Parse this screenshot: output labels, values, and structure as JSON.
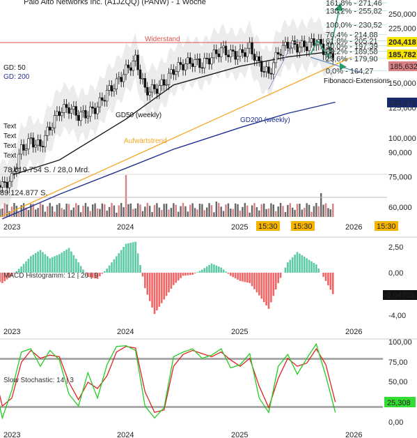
{
  "header": {
    "title": "Palo Alto Networks Inc. (A1JZQQ) (PANW) - 1 Woche"
  },
  "colors": {
    "up": "#1b1b1b",
    "down": "#1b1b1b",
    "gd50": "#1a1a1a",
    "gd200": "#1f2f8f",
    "trend": "#f5a623",
    "resistance": "#d9534f",
    "fib": "#2a8c8c",
    "macd_pos": "#5ccaa5",
    "macd_neg": "#f06565",
    "stoch_k": "#22cc22",
    "stoch_d": "#dd2222",
    "band": "#aaaaaa",
    "badge_yellow": "#f7e300",
    "badge_navy": "#1a2a6e",
    "badge_pink": "#d98085",
    "badge_black": "#111111",
    "badge_green": "#33dd33",
    "time_orange": "#f5b400"
  },
  "price_panel": {
    "legend": {
      "gd50": "GD: 50",
      "gd200": "GD: 200"
    },
    "text_lines": [
      "Text",
      "Text",
      "Text",
      "Text"
    ],
    "volume_label_1": "78.619.754 S. / 28,0 Mrd.",
    "volume_label_2": "89.124.877 S.",
    "annotations": {
      "resistance": "Widerstand",
      "gd50_weekly": "GD50 (weekly)",
      "gd200_weekly": "GD200 (weekly)",
      "uptrend": "Aufwärtstrend",
      "fib_ext": "Fibonacci-Extensions"
    },
    "fib_levels": [
      "161,8% - 271,46",
      "138,2% - 255,82",
      "100,0% - 230,52",
      "76,4% - 214,88",
      "61,8% - 205,21",
      "50,0% - 197,39",
      "38,2% - 189,58",
      "23,6% - 179,90",
      "0,0% - 164,27"
    ],
    "y_ticks": [
      "250,000",
      "225,000",
      "200,000",
      "150,000",
      "125,000",
      "100,000",
      "90,000",
      "75,000",
      "60,000"
    ],
    "badges": {
      "b1": "204,418",
      "b2": "185,782",
      "b3": "185,632",
      "b4": "130,272"
    },
    "time_badges": [
      "15:30",
      "15:30",
      "15:30"
    ]
  },
  "x_ticks": [
    "2023",
    "2024",
    "2025",
    "2026"
  ],
  "macd_panel": {
    "label": "MACD Histogramm: 12 | 26 | 9",
    "y_ticks": [
      "2,50",
      "0,00",
      "-2,50",
      "-4,00"
    ],
    "badge": "-2,04703"
  },
  "stoch_panel": {
    "label": "Slow Stochastic: 14 | 3",
    "y_ticks": [
      "100,00",
      "75,00",
      "50,00",
      "25,00",
      "0,00"
    ],
    "badge": "25,308"
  },
  "chart_data": [
    {
      "type": "candlestick",
      "title": "Palo Alto Networks Inc. (A1JZQQ) (PANW) - 1 Woche",
      "y_scale": "log",
      "ylim": [
        55,
        290
      ],
      "x_range": [
        "2022-10",
        "2026-08"
      ],
      "close_series": [
        [
          "2022-10",
          82
        ],
        [
          "2022-11",
          75
        ],
        [
          "2022-12",
          70
        ],
        [
          "2023-01",
          74
        ],
        [
          "2023-02",
          92
        ],
        [
          "2023-03",
          98
        ],
        [
          "2023-04",
          94
        ],
        [
          "2023-05",
          108
        ],
        [
          "2023-06",
          122
        ],
        [
          "2023-07",
          125
        ],
        [
          "2023-08",
          118
        ],
        [
          "2023-09",
          120
        ],
        [
          "2023-10",
          126
        ],
        [
          "2023-11",
          140
        ],
        [
          "2023-12",
          150
        ],
        [
          "2024-01",
          165
        ],
        [
          "2024-02",
          178
        ],
        [
          "2024-03",
          142
        ],
        [
          "2024-04",
          143
        ],
        [
          "2024-05",
          150
        ],
        [
          "2024-06",
          165
        ],
        [
          "2024-07",
          172
        ],
        [
          "2024-08",
          176
        ],
        [
          "2024-09",
          172
        ],
        [
          "2024-10",
          182
        ],
        [
          "2024-11",
          192
        ],
        [
          "2024-12",
          186
        ],
        [
          "2025-01",
          185
        ],
        [
          "2025-02",
          195
        ],
        [
          "2025-03",
          172
        ],
        [
          "2025-04",
          160
        ],
        [
          "2025-05",
          188
        ],
        [
          "2025-06",
          200
        ],
        [
          "2025-07",
          196
        ],
        [
          "2025-08",
          198
        ],
        [
          "2025-09",
          205
        ],
        [
          "2025-10",
          188
        ],
        [
          "2025-11",
          185.6
        ]
      ],
      "series": [
        {
          "name": "GD50 (weekly)",
          "values": [
            [
              "2023-01",
              76
            ],
            [
              "2023-06",
              85
            ],
            [
              "2024-01",
              115
            ],
            [
              "2024-06",
              148
            ],
            [
              "2025-01",
              170
            ],
            [
              "2025-06",
              182
            ],
            [
              "2025-11",
              190
            ]
          ]
        },
        {
          "name": "GD200 (weekly)",
          "values": [
            [
              "2022-12",
              55
            ],
            [
              "2023-06",
              66
            ],
            [
              "2024-01",
              80
            ],
            [
              "2024-06",
              92
            ],
            [
              "2025-01",
              108
            ],
            [
              "2025-06",
              120
            ],
            [
              "2025-11",
              130.3
            ]
          ]
        }
      ],
      "resistance": 205,
      "fibonacci_extensions": [
        271.46,
        255.82,
        230.52,
        214.88,
        205.21,
        197.39,
        189.58,
        179.9,
        164.27
      ]
    },
    {
      "type": "bar",
      "title": "MACD Histogramm: 12 | 26 | 9",
      "ylim": [
        -4.6,
        3.2
      ],
      "values_by_month": [
        [
          "2022-11",
          -0.6
        ],
        [
          "2022-12",
          -1.0
        ],
        [
          "2023-01",
          -0.3
        ],
        [
          "2023-02",
          0.6
        ],
        [
          "2023-03",
          1.6
        ],
        [
          "2023-04",
          2.2
        ],
        [
          "2023-05",
          1.4
        ],
        [
          "2023-06",
          1.8
        ],
        [
          "2023-07",
          2.4
        ],
        [
          "2023-08",
          1.0
        ],
        [
          "2023-09",
          -0.4
        ],
        [
          "2023-10",
          -0.6
        ],
        [
          "2023-11",
          0.4
        ],
        [
          "2023-12",
          1.6
        ],
        [
          "2024-01",
          2.8
        ],
        [
          "2024-02",
          3.0
        ],
        [
          "2024-03",
          -1.5
        ],
        [
          "2024-04",
          -4.0
        ],
        [
          "2024-05",
          -2.6
        ],
        [
          "2024-06",
          -1.2
        ],
        [
          "2024-07",
          -0.3
        ],
        [
          "2024-08",
          -0.2
        ],
        [
          "2024-09",
          0.3
        ],
        [
          "2024-10",
          0.9
        ],
        [
          "2024-11",
          0.5
        ],
        [
          "2024-12",
          -0.3
        ],
        [
          "2025-01",
          -0.8
        ],
        [
          "2025-02",
          -1.0
        ],
        [
          "2025-03",
          -2.2
        ],
        [
          "2025-04",
          -3.5
        ],
        [
          "2025-05",
          -1.0
        ],
        [
          "2025-06",
          1.0
        ],
        [
          "2025-07",
          2.0
        ],
        [
          "2025-08",
          1.4
        ],
        [
          "2025-09",
          0.8
        ],
        [
          "2025-10",
          -0.8
        ],
        [
          "2025-11",
          -2.5
        ]
      ]
    },
    {
      "type": "line",
      "title": "Slow Stochastic: 14 | 3",
      "ylim": [
        0,
        100
      ],
      "bands": [
        80,
        20
      ],
      "series": [
        {
          "name": "%K",
          "values": [
            [
              "2022-11",
              60
            ],
            [
              "2022-12",
              5
            ],
            [
              "2023-01",
              40
            ],
            [
              "2023-02",
              88
            ],
            [
              "2023-03",
              92
            ],
            [
              "2023-04",
              70
            ],
            [
              "2023-05",
              90
            ],
            [
              "2023-06",
              78
            ],
            [
              "2023-07",
              35
            ],
            [
              "2023-08",
              20
            ],
            [
              "2023-09",
              62
            ],
            [
              "2023-10",
              30
            ],
            [
              "2023-11",
              72
            ],
            [
              "2023-12",
              95
            ],
            [
              "2024-01",
              96
            ],
            [
              "2024-02",
              90
            ],
            [
              "2024-03",
              20
            ],
            [
              "2024-04",
              5
            ],
            [
              "2024-05",
              18
            ],
            [
              "2024-06",
              82
            ],
            [
              "2024-07",
              88
            ],
            [
              "2024-08",
              92
            ],
            [
              "2024-09",
              80
            ],
            [
              "2024-10",
              84
            ],
            [
              "2024-11",
              92
            ],
            [
              "2024-12",
              68
            ],
            [
              "2025-01",
              72
            ],
            [
              "2025-02",
              86
            ],
            [
              "2025-03",
              30
            ],
            [
              "2025-04",
              12
            ],
            [
              "2025-05",
              70
            ],
            [
              "2025-06",
              85
            ],
            [
              "2025-07",
              60
            ],
            [
              "2025-08",
              80
            ],
            [
              "2025-09",
              98
            ],
            [
              "2025-10",
              58
            ],
            [
              "2025-11",
              12
            ]
          ]
        },
        {
          "name": "%D",
          "values": [
            [
              "2022-11",
              70
            ],
            [
              "2022-12",
              20
            ],
            [
              "2023-01",
              30
            ],
            [
              "2023-02",
              75
            ],
            [
              "2023-03",
              90
            ],
            [
              "2023-04",
              80
            ],
            [
              "2023-05",
              84
            ],
            [
              "2023-06",
              82
            ],
            [
              "2023-07",
              50
            ],
            [
              "2023-08",
              28
            ],
            [
              "2023-09",
              50
            ],
            [
              "2023-10",
              42
            ],
            [
              "2023-11",
              58
            ],
            [
              "2023-12",
              88
            ],
            [
              "2024-01",
              95
            ],
            [
              "2024-02",
              93
            ],
            [
              "2024-03",
              38
            ],
            [
              "2024-04",
              12
            ],
            [
              "2024-05",
              15
            ],
            [
              "2024-06",
              70
            ],
            [
              "2024-07",
              85
            ],
            [
              "2024-08",
              90
            ],
            [
              "2024-09",
              86
            ],
            [
              "2024-10",
              82
            ],
            [
              "2024-11",
              88
            ],
            [
              "2024-12",
              78
            ],
            [
              "2025-01",
              70
            ],
            [
              "2025-02",
              80
            ],
            [
              "2025-03",
              45
            ],
            [
              "2025-04",
              18
            ],
            [
              "2025-05",
              55
            ],
            [
              "2025-06",
              80
            ],
            [
              "2025-07",
              70
            ],
            [
              "2025-08",
              74
            ],
            [
              "2025-09",
              92
            ],
            [
              "2025-10",
              72
            ],
            [
              "2025-11",
              25
            ]
          ]
        }
      ]
    }
  ]
}
